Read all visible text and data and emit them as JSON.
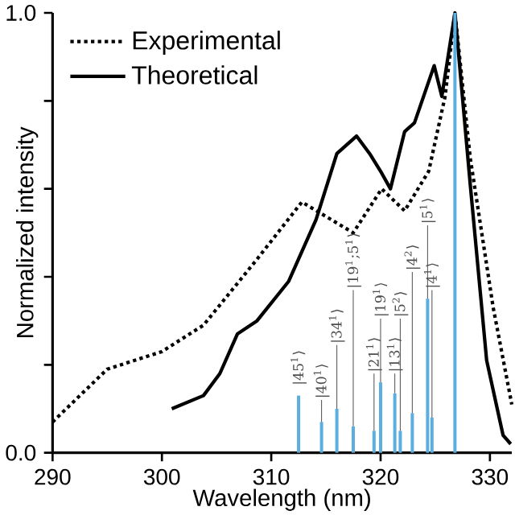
{
  "chart_data": {
    "type": "line",
    "xlabel": "Wavelength (nm)",
    "ylabel": "Normalized intensity",
    "xlim": [
      290,
      332
    ],
    "ylim": [
      0,
      1
    ],
    "xticks": [
      290,
      300,
      310,
      320,
      330
    ],
    "yticks": [
      {
        "value": 0,
        "label": "0.0"
      },
      {
        "value": 0.2,
        "label": null
      },
      {
        "value": 0.4,
        "label": null
      },
      {
        "value": 0.6,
        "label": null
      },
      {
        "value": 0.8,
        "label": null
      },
      {
        "value": 1,
        "label": "1.0"
      }
    ],
    "legend": "top left",
    "series": [
      {
        "name": "Experimental",
        "color": "#000000",
        "line_style": "dotted",
        "x": [
          290,
          295,
          300,
          303.8,
          308.7,
          312.8,
          317.5,
          320.1,
          322.2,
          324.4,
          325.9,
          326.8,
          328.2,
          330.3,
          332
        ],
        "values": [
          0.07,
          0.19,
          0.23,
          0.29,
          0.44,
          0.57,
          0.5,
          0.6,
          0.55,
          0.64,
          0.81,
          1.0,
          0.67,
          0.33,
          0.11
        ]
      },
      {
        "name": "Theoretical",
        "color": "#000000",
        "line_style": "solid",
        "x": [
          300.9,
          303.8,
          305.3,
          306.9,
          308.7,
          311.6,
          314.1,
          316.0,
          317.8,
          319.0,
          320.0,
          320.9,
          322.2,
          323.1,
          324.9,
          325.6,
          326.8,
          328.2,
          329.7,
          331.2,
          331.9
        ],
        "values": [
          0.1,
          0.13,
          0.18,
          0.27,
          0.3,
          0.39,
          0.53,
          0.68,
          0.72,
          0.68,
          0.64,
          0.6,
          0.73,
          0.75,
          0.88,
          0.81,
          1.0,
          0.61,
          0.21,
          0.04,
          0.02
        ]
      },
      {
        "type": "bar",
        "color": "#5aaee0",
        "x": [
          312.5,
          314.6,
          316.0,
          317.5,
          319.4,
          320.0,
          321.3,
          321.8,
          322.9,
          324.3,
          324.7,
          326.8
        ],
        "values": [
          0.13,
          0.07,
          0.1,
          0.06,
          0.05,
          0.16,
          0.135,
          0.05,
          0.09,
          0.35,
          0.08,
          1.0
        ]
      }
    ],
    "annotations": [
      {
        "text": "|45$^{1}$⟩",
        "x": 312.5,
        "y": 0.13
      },
      {
        "text": "|40$^{1}$⟩",
        "x": 314.6,
        "y": 0.07
      },
      {
        "text": "|34$^{1}$⟩",
        "x": 316.0,
        "y": 0.1
      },
      {
        "text": "|19$^{1}$;5$^{1}$⟩",
        "x": 317.5,
        "y": 0.06
      },
      {
        "text": "|21$^{1}$⟩",
        "x": 319.4,
        "y": 0.05
      },
      {
        "text": "|19$^{1}$⟩",
        "x": 320.0,
        "y": 0.16
      },
      {
        "text": "|13$^{1}$⟩",
        "x": 321.3,
        "y": 0.135
      },
      {
        "text": "|5$^{2}$⟩",
        "x": 321.8,
        "y": 0.05
      },
      {
        "text": "|4$^{2}$⟩",
        "x": 322.9,
        "y": 0.09
      },
      {
        "text": "|5$^{1}$⟩",
        "x": 324.3,
        "y": 0.35
      },
      {
        "text": "|4$^{1}$⟩",
        "x": 324.7,
        "y": 0.08
      }
    ]
  }
}
